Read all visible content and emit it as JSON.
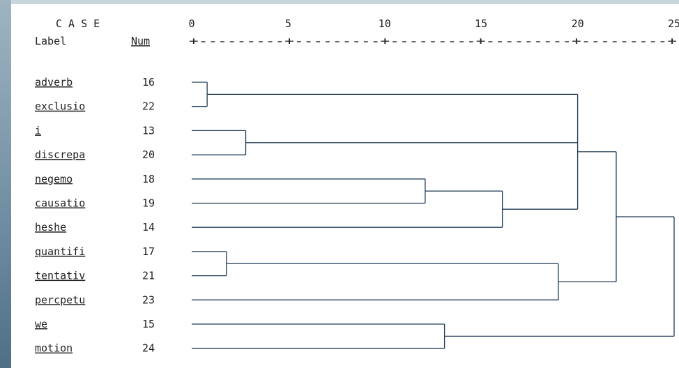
{
  "header": {
    "case": "C A S E",
    "label": "Label",
    "num": "Num",
    "scale_ticks": [
      "0",
      "5",
      "10",
      "15",
      "20",
      "25"
    ],
    "scale_line": "+---------+---------+---------+---------+---------+"
  },
  "chart_data": {
    "type": "dendrogram",
    "xlim": [
      0,
      25
    ],
    "leaves": [
      {
        "label": "adverb",
        "num": "16"
      },
      {
        "label": "exclusio",
        "num": "22"
      },
      {
        "label": "i",
        "num": "13"
      },
      {
        "label": "discrepa",
        "num": "20"
      },
      {
        "label": "negemo",
        "num": "18"
      },
      {
        "label": "causatio",
        "num": "19"
      },
      {
        "label": "heshe",
        "num": "14"
      },
      {
        "label": "quantifi",
        "num": "17"
      },
      {
        "label": "tentativ",
        "num": "21"
      },
      {
        "label": "percpetu",
        "num": "23"
      },
      {
        "label": "we",
        "num": "15"
      },
      {
        "label": "motion",
        "num": "24"
      }
    ],
    "merges": [
      {
        "id": "m1",
        "children": [
          0,
          1
        ],
        "height": 0.8
      },
      {
        "id": "m2",
        "children": [
          3,
          2
        ],
        "height": 2.8
      },
      {
        "id": "m3",
        "children": [
          7,
          8
        ],
        "height": 1.8
      },
      {
        "id": "m4",
        "children": [
          4,
          5
        ],
        "height": 12.1
      },
      {
        "id": "m5",
        "children": [
          "m4",
          6
        ],
        "height": 16.1
      },
      {
        "id": "m6",
        "children": [
          "m1",
          "m2",
          "m5"
        ],
        "height": 20.0
      },
      {
        "id": "m7",
        "children": [
          "m3",
          9
        ],
        "height": 19.0
      },
      {
        "id": "m8",
        "children": [
          "m6",
          "m7"
        ],
        "height": 22.0
      },
      {
        "id": "m9",
        "children": [
          10,
          11
        ],
        "height": 13.1
      },
      {
        "id": "m10",
        "children": [
          "m8",
          "m9"
        ],
        "height": 25.0
      }
    ]
  }
}
